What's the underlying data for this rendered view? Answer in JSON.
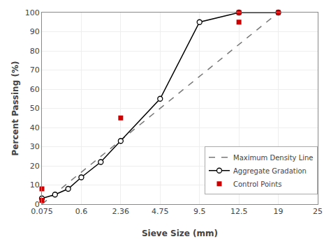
{
  "chart_data": {
    "type": "line",
    "xlabel": "Sieve Size (mm)",
    "ylabel": "Percent Passing (%)",
    "xlim": [
      0.075,
      25
    ],
    "xticks": [
      0.075,
      0.6,
      2.36,
      4.75,
      9.5,
      12.5,
      19,
      25
    ],
    "ylim": [
      0,
      100
    ],
    "yticks": [
      0,
      10,
      20,
      30,
      40,
      50,
      60,
      70,
      80,
      90,
      100
    ],
    "grid": true,
    "legend": "lower right",
    "series": [
      {
        "name": "Maximum Density Line",
        "type": "line",
        "color": "#777777",
        "line_style": "dashed",
        "x": [
          0.075,
          19.0
        ],
        "values": [
          0,
          100
        ]
      },
      {
        "name": "Aggregate Gradation",
        "type": "line",
        "color": "#000000",
        "line_style": "solid",
        "marker": "circle",
        "x": [
          0.075,
          0.15,
          0.3,
          0.6,
          1.18,
          2.36,
          4.75,
          9.5,
          12.5,
          19.0
        ],
        "values": [
          3,
          5,
          8,
          14,
          22,
          33,
          55,
          95,
          100,
          100
        ]
      },
      {
        "name": "Control Points",
        "type": "scatter",
        "color": "#cc0000",
        "marker": "square",
        "x": [
          0.075,
          0.075,
          2.36,
          12.5,
          12.5,
          19.0
        ],
        "values": [
          2,
          8,
          45,
          95,
          100,
          100
        ]
      }
    ]
  }
}
